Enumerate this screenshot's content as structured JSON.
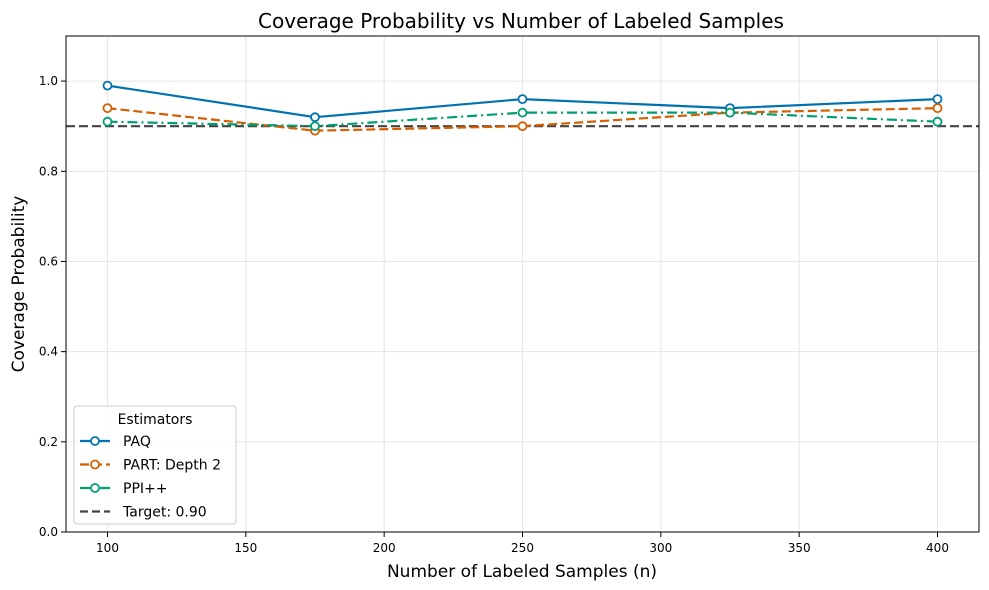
{
  "chart_data": {
    "type": "line",
    "title": "Coverage Probability vs Number of Labeled Samples",
    "xlabel": "Number of Labeled Samples (n)",
    "ylabel": "Coverage Probability",
    "xlim": [
      85,
      415
    ],
    "ylim": [
      0.0,
      1.1
    ],
    "grid": true,
    "x_ticks": [
      100,
      150,
      200,
      250,
      300,
      350,
      400
    ],
    "y_ticks": [
      0.0,
      0.2,
      0.4,
      0.6,
      0.8,
      1.0
    ],
    "x_tick_labels": [
      "100",
      "150",
      "200",
      "250",
      "300",
      "350",
      "400"
    ],
    "y_tick_labels": [
      "0.0",
      "0.2",
      "0.4",
      "0.6",
      "0.8",
      "1.0"
    ],
    "x": [
      100,
      175,
      250,
      325,
      400
    ],
    "series": [
      {
        "name": "PAQ",
        "values": [
          0.99,
          0.92,
          0.96,
          0.94,
          0.96
        ],
        "color": "#0072b2",
        "dash": "solid"
      },
      {
        "name": "PART: Depth 2",
        "values": [
          0.94,
          0.89,
          0.9,
          0.93,
          0.94
        ],
        "color": "#d55e00",
        "dash": "dashed"
      },
      {
        "name": "PPI++",
        "values": [
          0.91,
          0.9,
          0.93,
          0.93,
          0.91
        ],
        "color": "#009e73",
        "dash": "dashdot"
      }
    ],
    "reference_line": {
      "name": "Target: 0.90",
      "value": 0.9,
      "color": "#444444",
      "dash": "dashed"
    },
    "legend": {
      "title": "Estimators",
      "position": "lower-left"
    }
  }
}
